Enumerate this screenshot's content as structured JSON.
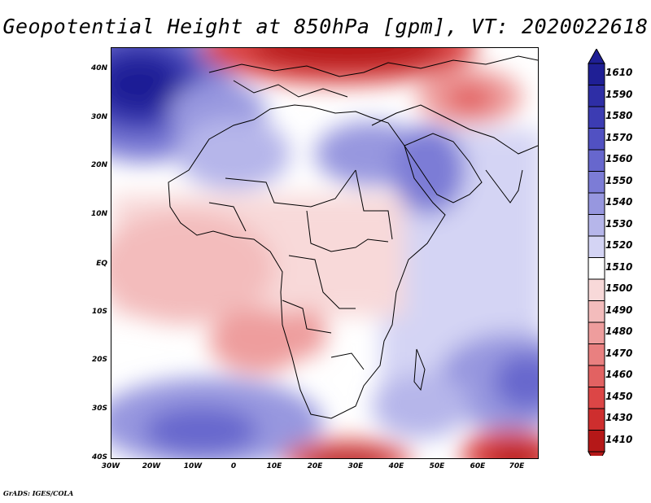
{
  "title": "Geopotential Height at 850hPa [gpm], VT: 2020022618",
  "footer": "GrADS: IGES/COLA",
  "map": {
    "lon_range": [
      -30,
      75
    ],
    "lat_range": [
      -40,
      45
    ],
    "lat_ticks": [
      "40N",
      "30N",
      "20N",
      "10N",
      "EQ",
      "10S",
      "20S",
      "30S",
      "40S"
    ],
    "lon_ticks": [
      "30W",
      "20W",
      "10W",
      "0",
      "10E",
      "20E",
      "30E",
      "40E",
      "50E",
      "60E",
      "70E"
    ]
  },
  "colorbar": {
    "labels": [
      "1610",
      "1590",
      "1580",
      "1570",
      "1560",
      "1550",
      "1540",
      "1530",
      "1520",
      "1510",
      "1500",
      "1490",
      "1480",
      "1470",
      "1460",
      "1450",
      "1430",
      "1410"
    ],
    "colors": [
      "#1f1f95",
      "#2e2ea6",
      "#3c3cb3",
      "#5151c2",
      "#6767cd",
      "#7c7cd6",
      "#9797df",
      "#b6b6ea",
      "#d4d4f4",
      "#ffffff",
      "#f8d9d9",
      "#f3bcbc",
      "#ee9d9d",
      "#e98080",
      "#e26262",
      "#dc4646",
      "#ce2e2e",
      "#b51818"
    ]
  }
}
